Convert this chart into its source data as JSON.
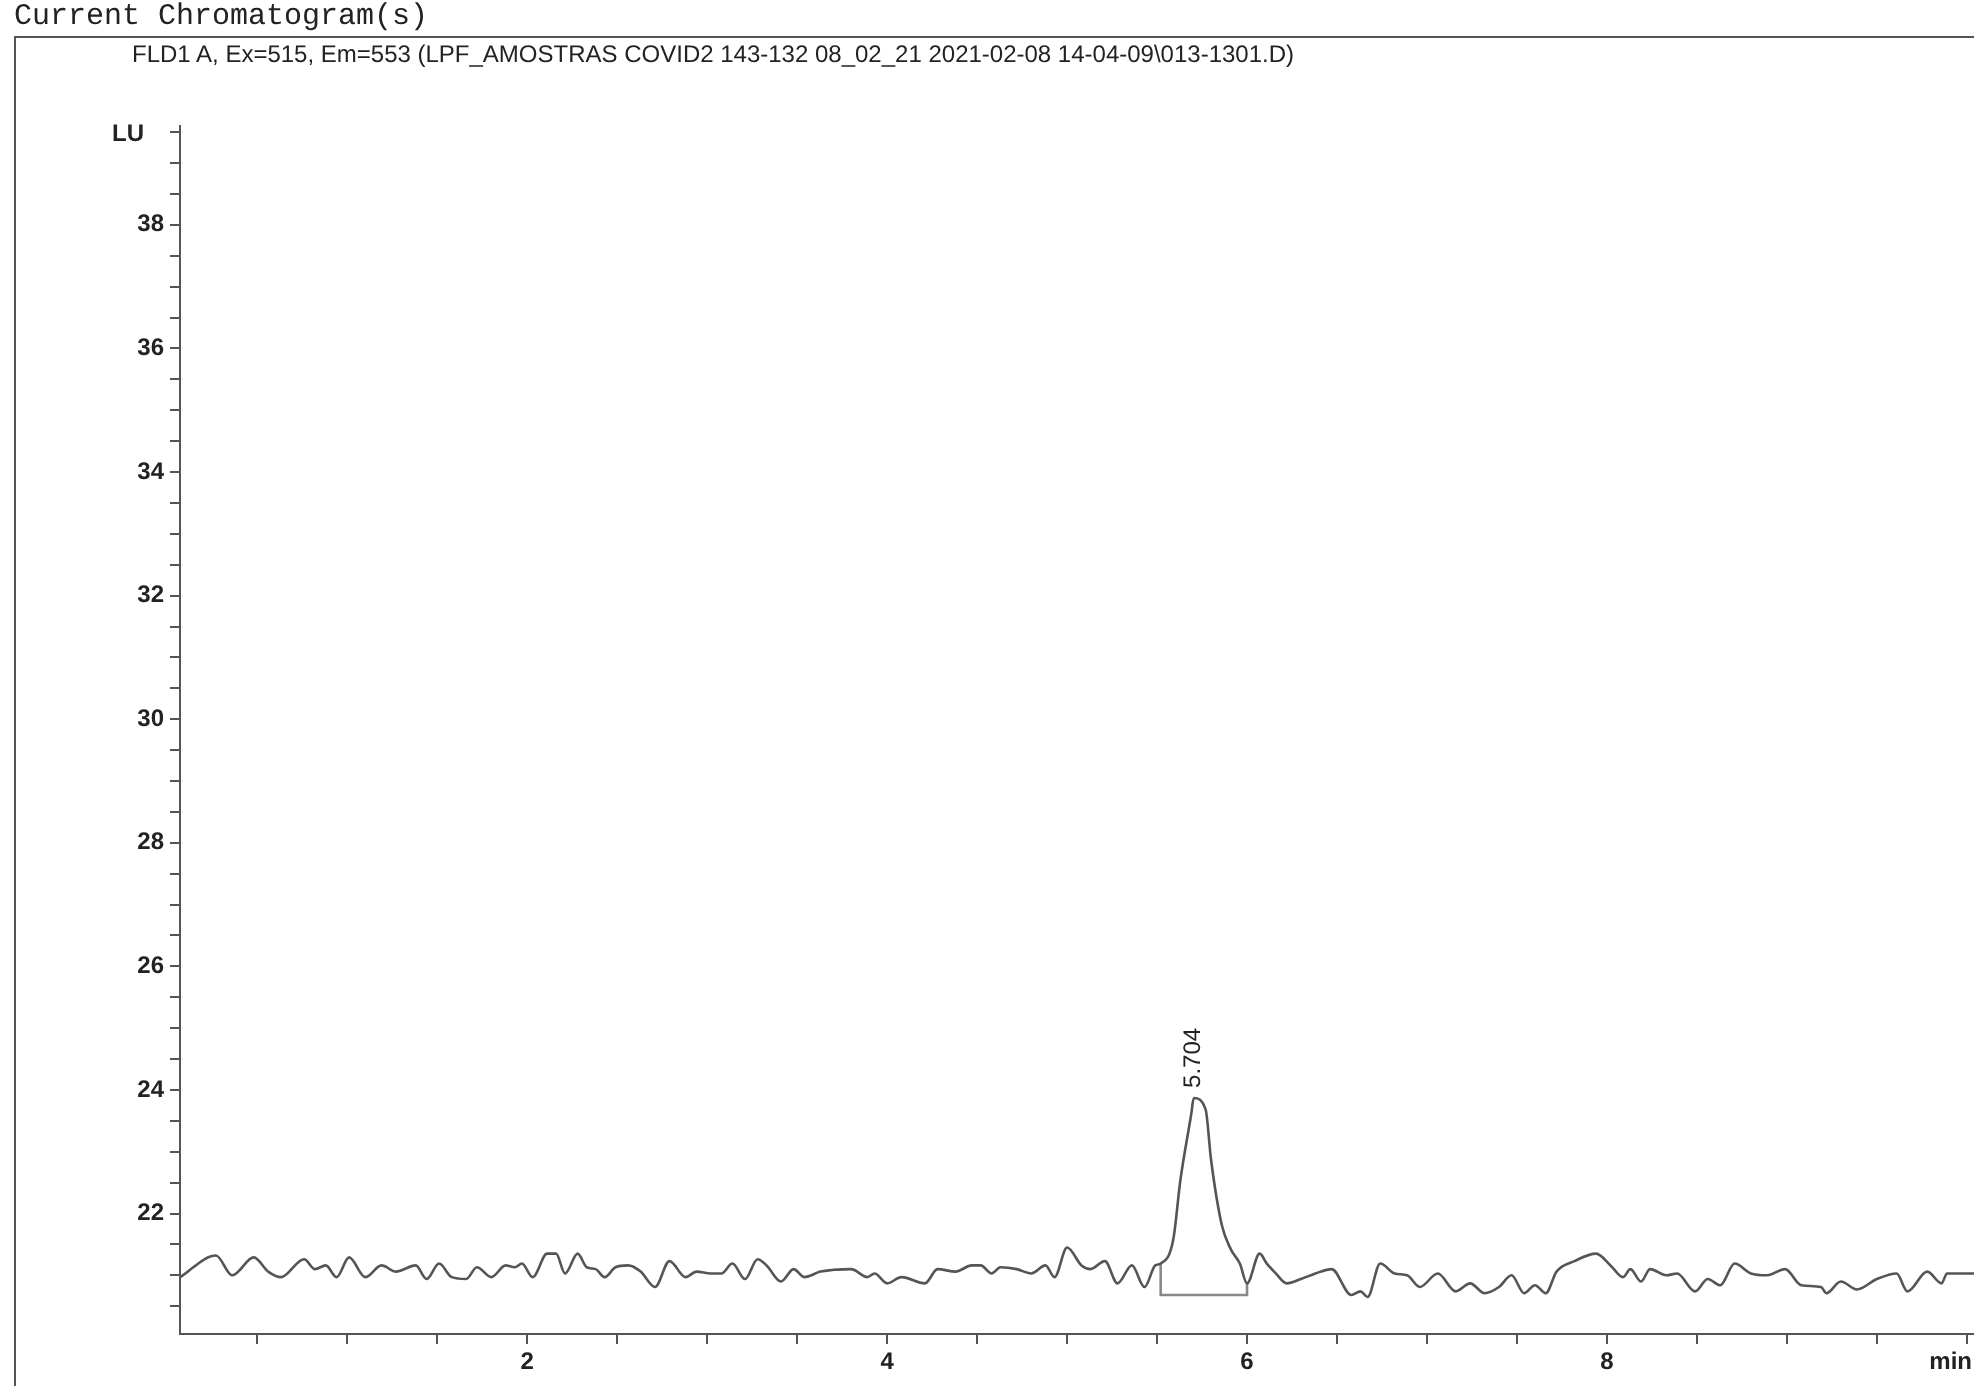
{
  "chart_data": {
    "type": "line",
    "title": "Current Chromatogram(s)",
    "subtitle": "FLD1 A, Ex=515, Em=553 (LPF_AMOSTRAS COVID2 143-132 08_02_21 2021-02-08 14-04-09\\013-1301.D)",
    "xlabel": "min",
    "ylabel": "LU",
    "xlim": [
      0.07,
      10.04
    ],
    "ylim": [
      20.05,
      39.6
    ],
    "xticks": [
      {
        "value": 0.5,
        "label": null
      },
      {
        "value": 1,
        "label": null
      },
      {
        "value": 1.5,
        "label": null
      },
      2,
      {
        "value": 2.5,
        "label": null
      },
      {
        "value": 3,
        "label": null
      },
      {
        "value": 3.5,
        "label": null
      },
      4,
      {
        "value": 4.5,
        "label": null
      },
      {
        "value": 5,
        "label": null
      },
      {
        "value": 5.5,
        "label": null
      },
      6,
      {
        "value": 6.5,
        "label": null
      },
      {
        "value": 7,
        "label": null
      },
      {
        "value": 7.5,
        "label": null
      },
      8,
      {
        "value": 8.5,
        "label": null
      },
      {
        "value": 9,
        "label": null
      },
      {
        "value": 9.5,
        "label": null
      },
      {
        "value": 10,
        "label": null
      }
    ],
    "yticks": [
      {
        "value": 20.5,
        "label": null
      },
      {
        "value": 21,
        "label": null
      },
      {
        "value": 21.5,
        "label": null
      },
      22,
      {
        "value": 22.5,
        "label": null
      },
      {
        "value": 23,
        "label": null
      },
      {
        "value": 23.5,
        "label": null
      },
      24,
      {
        "value": 24.5,
        "label": null
      },
      {
        "value": 25,
        "label": null
      },
      {
        "value": 25.5,
        "label": null
      },
      26,
      {
        "value": 26.5,
        "label": null
      },
      {
        "value": 27,
        "label": null
      },
      {
        "value": 27.5,
        "label": null
      },
      28,
      {
        "value": 28.5,
        "label": null
      },
      {
        "value": 29,
        "label": null
      },
      {
        "value": 29.5,
        "label": null
      },
      30,
      {
        "value": 30.5,
        "label": null
      },
      {
        "value": 31,
        "label": null
      },
      {
        "value": 31.5,
        "label": null
      },
      32,
      {
        "value": 32.5,
        "label": null
      },
      {
        "value": 33,
        "label": null
      },
      {
        "value": 33.5,
        "label": null
      },
      34,
      {
        "value": 34.5,
        "label": null
      },
      {
        "value": 35,
        "label": null
      },
      {
        "value": 35.5,
        "label": null
      },
      36,
      {
        "value": 36.5,
        "label": null
      },
      {
        "value": 37,
        "label": null
      },
      {
        "value": 37.5,
        "label": null
      },
      38,
      {
        "value": 38.5,
        "label": null
      },
      {
        "value": 39,
        "label": null
      },
      {
        "value": 39.5,
        "label": null
      }
    ],
    "grid": false,
    "legend": false,
    "marker": "none",
    "line_style": "solid",
    "annotations": [
      {
        "text": "5.704",
        "x": 5.704,
        "y": 23.87
      }
    ],
    "series": [
      {
        "color": "#555555",
        "x": [
          0.07,
          0.27,
          0.36,
          0.48,
          0.56,
          0.63,
          0.76,
          0.82,
          0.88,
          0.94,
          1.01,
          1.1,
          1.19,
          1.27,
          1.38,
          1.44,
          1.51,
          1.58,
          1.66,
          1.72,
          1.8,
          1.88,
          1.93,
          1.97,
          2.03,
          2.11,
          2.16,
          2.21,
          2.28,
          2.33,
          2.38,
          2.43,
          2.49,
          2.56,
          2.63,
          2.71,
          2.79,
          2.88,
          2.94,
          3.02,
          3.08,
          3.14,
          3.21,
          3.28,
          3.33,
          3.41,
          3.48,
          3.54,
          3.63,
          3.8,
          3.89,
          3.93,
          4.0,
          4.08,
          4.21,
          4.28,
          4.38,
          4.47,
          4.52,
          4.58,
          4.63,
          4.72,
          4.8,
          4.88,
          4.93,
          5.0,
          5.08,
          5.13,
          5.21,
          5.28,
          5.36,
          5.43,
          5.49,
          5.52,
          5.59,
          5.63,
          5.69,
          5.704,
          5.77,
          5.8,
          5.86,
          5.91,
          5.96,
          6.0,
          6.07,
          6.11,
          6.16,
          6.22,
          6.3,
          6.38,
          6.47,
          6.58,
          6.63,
          6.67,
          6.74,
          6.82,
          6.89,
          6.96,
          7.06,
          7.16,
          7.24,
          7.32,
          7.4,
          7.47,
          7.54,
          7.6,
          7.66,
          7.72,
          7.82,
          7.94,
          8.02,
          8.09,
          8.13,
          8.19,
          8.24,
          8.33,
          8.39,
          8.49,
          8.56,
          8.63,
          8.71,
          8.8,
          8.89,
          8.99,
          9.08,
          9.19,
          9.22,
          9.3,
          9.39,
          9.5,
          9.61,
          9.67,
          9.78,
          9.86,
          9.89,
          10.04
        ],
        "values": [
          20.97,
          21.32,
          21.0,
          21.29,
          21.06,
          20.97,
          21.26,
          21.1,
          21.16,
          20.97,
          21.29,
          20.97,
          21.16,
          21.06,
          21.16,
          20.94,
          21.19,
          20.97,
          20.94,
          21.13,
          20.97,
          21.16,
          21.13,
          21.19,
          20.97,
          21.35,
          21.35,
          21.03,
          21.35,
          21.13,
          21.1,
          20.97,
          21.13,
          21.16,
          21.06,
          20.81,
          21.23,
          20.97,
          21.06,
          21.03,
          21.03,
          21.19,
          20.94,
          21.26,
          21.16,
          20.9,
          21.1,
          20.97,
          21.06,
          21.1,
          20.97,
          21.03,
          20.87,
          20.97,
          20.87,
          21.1,
          21.06,
          21.16,
          21.16,
          21.03,
          21.13,
          21.1,
          21.03,
          21.16,
          20.97,
          21.45,
          21.16,
          21.1,
          21.23,
          20.87,
          21.16,
          20.81,
          21.16,
          21.19,
          21.58,
          22.55,
          23.61,
          23.87,
          23.68,
          22.87,
          21.81,
          21.42,
          21.19,
          20.87,
          21.35,
          21.19,
          21.03,
          20.87,
          20.94,
          21.03,
          21.1,
          20.68,
          20.74,
          20.65,
          21.19,
          21.03,
          21.0,
          20.81,
          21.03,
          20.74,
          20.87,
          20.71,
          20.81,
          21.0,
          20.71,
          20.84,
          20.71,
          21.06,
          21.23,
          21.35,
          21.16,
          20.97,
          21.1,
          20.9,
          21.1,
          21.0,
          21.03,
          20.74,
          20.94,
          20.84,
          21.19,
          21.03,
          21.0,
          21.1,
          20.84,
          20.81,
          20.71,
          20.9,
          20.77,
          20.94,
          21.03,
          20.74,
          21.06,
          20.87,
          21.03,
          21.03
        ]
      },
      {
        "color": "#888888",
        "x": [
          5.52,
          5.52,
          6.0,
          6.0
        ],
        "values": [
          21.19,
          20.68,
          20.68,
          20.87
        ]
      }
    ]
  }
}
